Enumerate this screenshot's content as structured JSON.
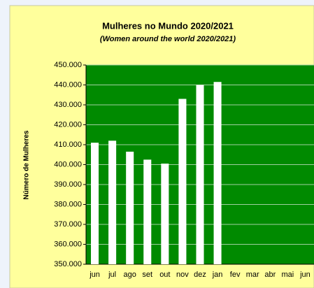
{
  "chart_data": {
    "type": "bar",
    "title": "Mulheres no Mundo 2020/2021",
    "subtitle": "(Women around the world 2020/2021)",
    "y_label": "Número de Mulheres",
    "categories": [
      "jun",
      "jul",
      "ago",
      "set",
      "out",
      "nov",
      "dez",
      "jan",
      "fev",
      "mar",
      "abr",
      "mai",
      "jun"
    ],
    "values": [
      411000,
      412000,
      406500,
      402500,
      400500,
      433000,
      440000,
      441500,
      null,
      null,
      null,
      null,
      null
    ],
    "color": "#ffffff",
    "ylim": [
      350000,
      450000
    ],
    "yticks": [
      {
        "value": 350000,
        "label": "350.000"
      },
      {
        "value": 360000,
        "label": "360.000"
      },
      {
        "value": 370000,
        "label": "370.000"
      },
      {
        "value": 380000,
        "label": "380.000"
      },
      {
        "value": 390000,
        "label": "390.000"
      },
      {
        "value": 400000,
        "label": "400.000"
      },
      {
        "value": 410000,
        "label": "410.000"
      },
      {
        "value": 420000,
        "label": "420.000"
      },
      {
        "value": 430000,
        "label": "430.000"
      },
      {
        "value": 440000,
        "label": "440.000"
      },
      {
        "value": 450000,
        "label": "450.000"
      }
    ],
    "grid": true
  }
}
